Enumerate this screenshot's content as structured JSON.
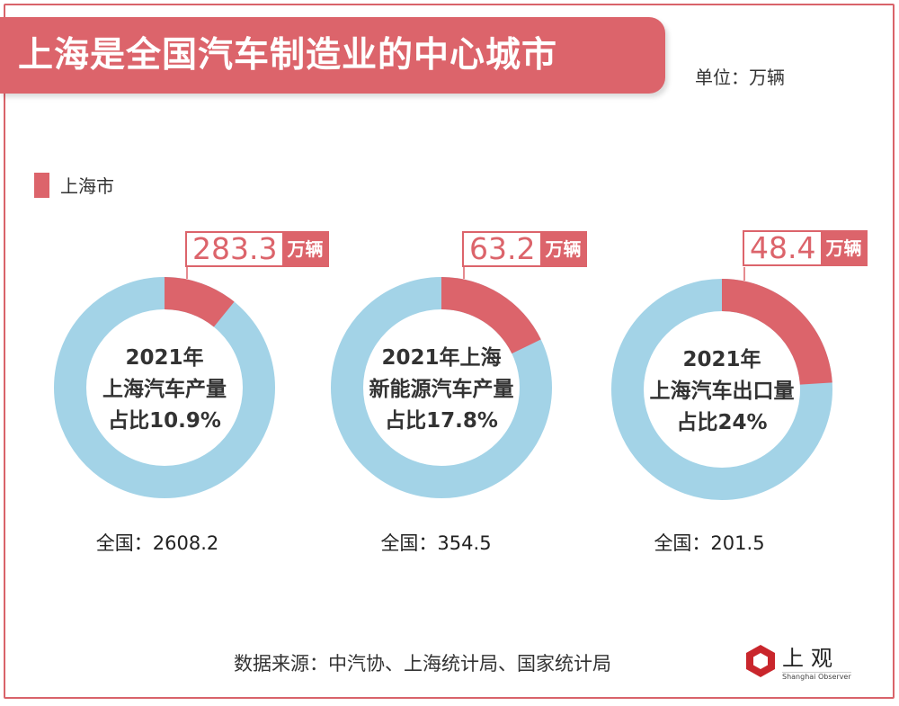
{
  "title": "上海是全国汽车制造业的中心城市",
  "unit": "单位：万辆",
  "legend": "上海市",
  "colors": {
    "shanghai": "#dc646b",
    "rest": "#a3d3e7"
  },
  "chart_data": {
    "type": "pie",
    "title": "上海是全国汽车制造业的中心城市",
    "unit": "万辆",
    "legend": [
      "上海市"
    ],
    "charts": [
      {
        "shanghai": 283.3,
        "national": 2608.2,
        "share_pct": 10.9,
        "value_label": "283.3",
        "unit_label": "万辆",
        "center_lines": [
          "2021年",
          "上海汽车产量",
          "占比10.9%"
        ],
        "total_label": "全国：2608.2"
      },
      {
        "shanghai": 63.2,
        "national": 354.5,
        "share_pct": 17.8,
        "value_label": "63.2",
        "unit_label": "万辆",
        "center_lines": [
          "2021年上海",
          "新能源汽车产量",
          "占比17.8%"
        ],
        "total_label": "全国：354.5"
      },
      {
        "shanghai": 48.4,
        "national": 201.5,
        "share_pct": 24,
        "value_label": "48.4",
        "unit_label": "万辆",
        "center_lines": [
          "2021年",
          "上海汽车出口量",
          "占比24%"
        ],
        "total_label": "全国：201.5"
      }
    ]
  },
  "source": "数据来源：中汽协、上海统计局、国家统计局",
  "logo": {
    "name": "上观",
    "sub": "Shanghai Observer"
  }
}
